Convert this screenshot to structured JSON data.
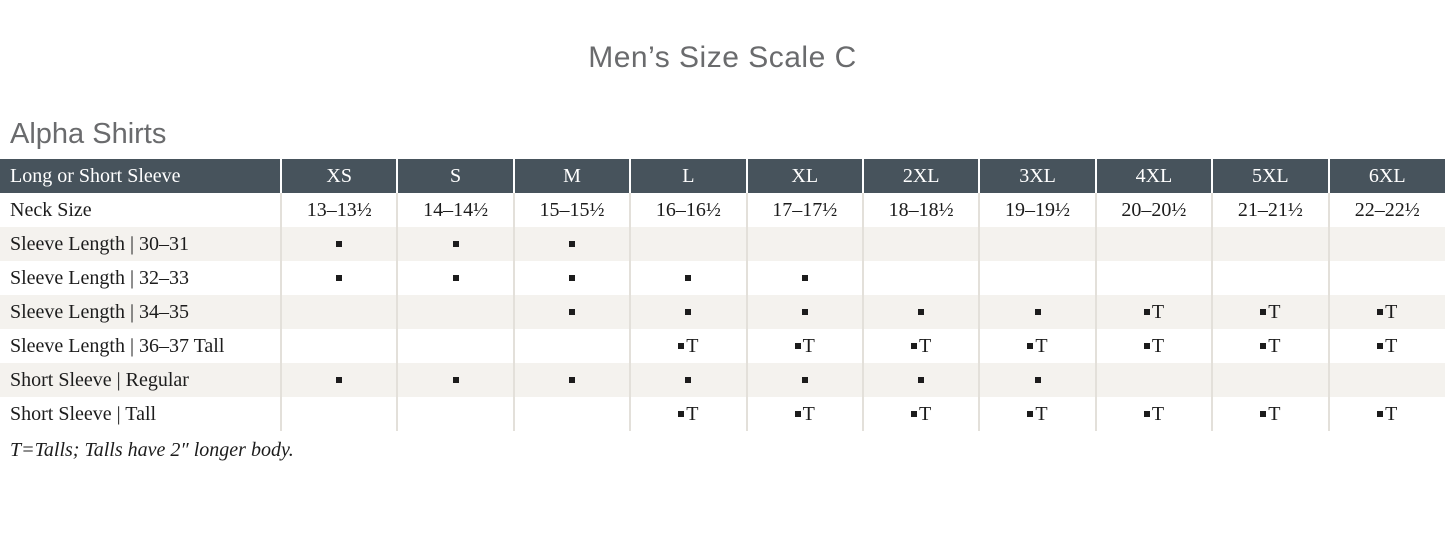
{
  "page": {
    "title": "Men’s Size Scale C",
    "section_heading": "Alpha Shirts",
    "footnote": "T=Talls; Talls have 2″ longer body."
  },
  "colors": {
    "header_bg": "#47535c",
    "header_text": "#ffffff",
    "row_stripe": "#f4f2ee",
    "grid_line": "#e3e0da",
    "body_text": "#1c1c1c",
    "heading_text": "#6a6b6d"
  },
  "glyphs": {
    "mark": "▪",
    "tall_suffix": "T"
  },
  "table": {
    "header": [
      "Long or Short Sleeve",
      "XS",
      "S",
      "M",
      "L",
      "XL",
      "2XL",
      "3XL",
      "4XL",
      "5XL",
      "6XL"
    ],
    "rows": [
      {
        "label": "Neck Size",
        "striped": false,
        "cells": [
          "13–13½",
          "14–14½",
          "15–15½",
          "16–16½",
          "17–17½",
          "18–18½",
          "19–19½",
          "20–20½",
          "21–21½",
          "22–22½"
        ]
      },
      {
        "label": "Sleeve Length  |  30–31",
        "striped": true,
        "cells": [
          "dot",
          "dot",
          "dot",
          "",
          "",
          "",
          "",
          "",
          "",
          ""
        ]
      },
      {
        "label": "Sleeve Length  |  32–33",
        "striped": false,
        "cells": [
          "dot",
          "dot",
          "dot",
          "dot",
          "dot",
          "",
          "",
          "",
          "",
          ""
        ]
      },
      {
        "label": "Sleeve Length  |  34–35",
        "striped": true,
        "cells": [
          "",
          "",
          "dot",
          "dot",
          "dot",
          "dot",
          "dot",
          "dotT",
          "dotT",
          "dotT"
        ]
      },
      {
        "label": "Sleeve Length  |  36–37 Tall",
        "striped": false,
        "cells": [
          "",
          "",
          "",
          "dotT",
          "dotT",
          "dotT",
          "dotT",
          "dotT",
          "dotT",
          "dotT"
        ]
      },
      {
        "label": "Short Sleeve  |  Regular",
        "striped": true,
        "cells": [
          "dot",
          "dot",
          "dot",
          "dot",
          "dot",
          "dot",
          "dot",
          "",
          "",
          ""
        ]
      },
      {
        "label": "Short Sleeve  |  Tall",
        "striped": false,
        "cells": [
          "",
          "",
          "",
          "dotT",
          "dotT",
          "dotT",
          "dotT",
          "dotT",
          "dotT",
          "dotT"
        ]
      }
    ]
  }
}
